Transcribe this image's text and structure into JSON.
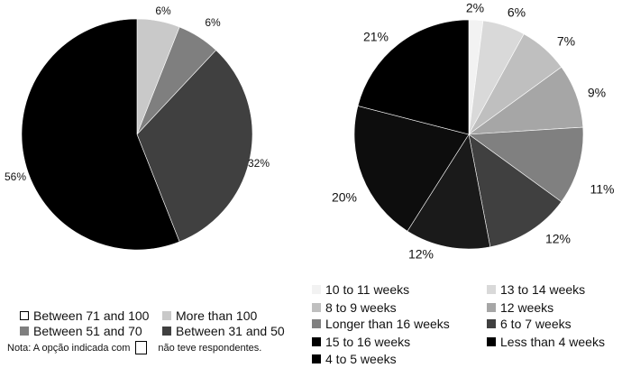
{
  "chart_data": [
    {
      "type": "pie",
      "title": "",
      "slices": [
        {
          "name": "More than 100",
          "value": 6,
          "label": "6%",
          "color": "#c9c9c9"
        },
        {
          "name": "Between 51 and 70",
          "value": 6,
          "label": "6%",
          "color": "#7f7f7f"
        },
        {
          "name": "Between 31 and 50",
          "value": 32,
          "label": "32%",
          "color": "#404040"
        },
        {
          "name": "56%",
          "value": 56,
          "label": "56%",
          "color": "#000000"
        }
      ],
      "legend": [
        {
          "label": "Between 71 and 100",
          "color": "#ffffff"
        },
        {
          "label": "More than 100",
          "color": "#c9c9c9"
        },
        {
          "label": "Between 51 and 70",
          "color": "#7f7f7f"
        },
        {
          "label": "Between 31 and 50",
          "color": "#404040"
        }
      ],
      "legend_position": "bottom"
    },
    {
      "type": "pie",
      "title": "",
      "slices": [
        {
          "name": "10 to 11 weeks",
          "value": 2,
          "label": "2%",
          "color": "#f2f2f2"
        },
        {
          "name": "13 to 14 weeks",
          "value": 6,
          "label": "6%",
          "color": "#d9d9d9"
        },
        {
          "name": "8 to 9 weeks",
          "value": 7,
          "label": "7%",
          "color": "#bfbfbf"
        },
        {
          "name": "12 weeks",
          "value": 9,
          "label": "9%",
          "color": "#a6a6a6"
        },
        {
          "name": "Longer than 16 weeks",
          "value": 11,
          "label": "11%",
          "color": "#808080"
        },
        {
          "name": "6 to 7 weeks",
          "value": 12,
          "label": "12%",
          "color": "#404040"
        },
        {
          "name": "15 to 16 weeks",
          "value": 12,
          "label": "12%",
          "color": "#1a1a1a"
        },
        {
          "name": "Less than 4 weeks",
          "value": 20,
          "label": "20%",
          "color": "#0d0d0d"
        },
        {
          "name": "4 to 5 weeks",
          "value": 21,
          "label": "21%",
          "color": "#000000"
        }
      ],
      "legend": [
        {
          "label": "10 to 11 weeks",
          "color": "#f2f2f2"
        },
        {
          "label": "13 to 14 weeks",
          "color": "#d9d9d9"
        },
        {
          "label": "8 to 9 weeks",
          "color": "#bfbfbf"
        },
        {
          "label": "12 weeks",
          "color": "#a6a6a6"
        },
        {
          "label": "Longer than 16 weeks",
          "color": "#808080"
        },
        {
          "label": "6 to 7 weeks",
          "color": "#404040"
        },
        {
          "label": "15 to 16 weeks",
          "color": "#000000"
        },
        {
          "label": "Less than 4 weeks",
          "color": "#000000"
        },
        {
          "label": "4 to 5 weeks",
          "color": "#000000"
        }
      ],
      "legend_position": "bottom"
    }
  ],
  "note": {
    "before": "Nota: A opção indicada com",
    "after": "não teve respondentes."
  }
}
